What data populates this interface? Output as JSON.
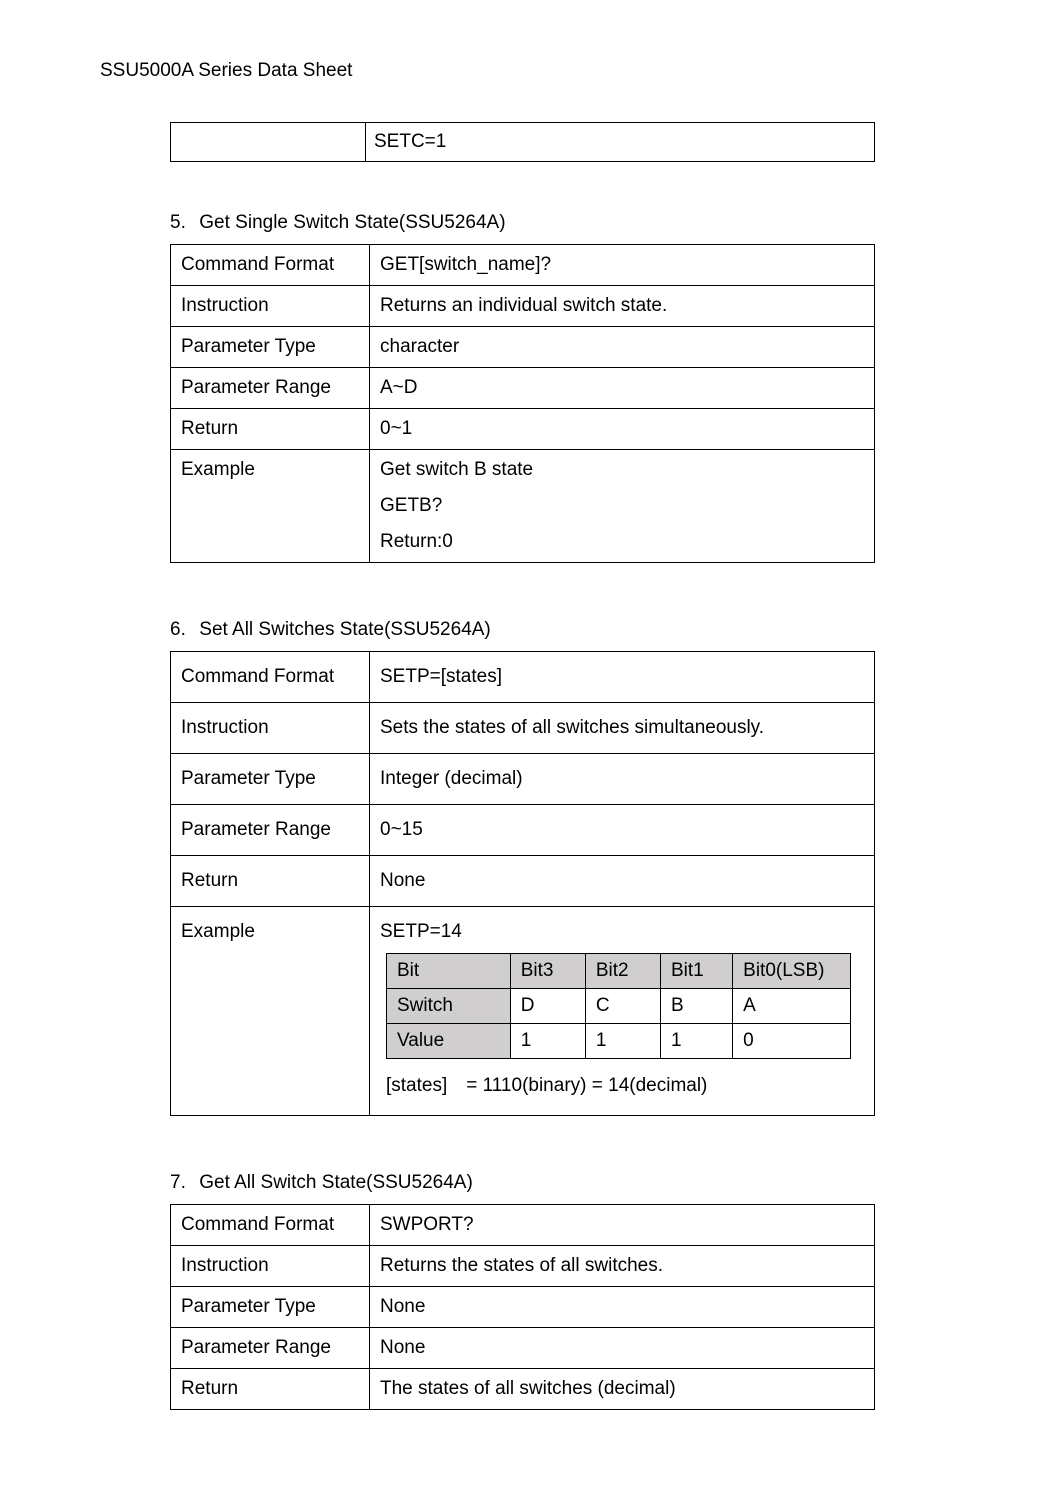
{
  "header": "SSU5000A Series Data Sheet",
  "top_fragment": {
    "col1": "",
    "col2": "SETC=1"
  },
  "sections": [
    {
      "number": "5.",
      "title": "Get Single Switch State(SSU5264A)",
      "table_class": "cmd-table5",
      "rows": [
        {
          "label": "Command Format",
          "value": "GET[switch_name]?"
        },
        {
          "label": "Instruction",
          "value": "Returns an individual switch state."
        },
        {
          "label": "Parameter Type",
          "value": "character"
        },
        {
          "label": "Parameter Range",
          "value": "A~D"
        },
        {
          "label": "Return",
          "value": "0~1"
        },
        {
          "label": "Example",
          "example_lines": [
            "Get switch B state",
            "GETB?",
            "Return:0"
          ]
        }
      ]
    },
    {
      "number": "6.",
      "title": "Set All Switches State(SSU5264A)",
      "table_class": "cmd-table6",
      "rows": [
        {
          "label": "Command Format",
          "value": "SETP=[states]"
        },
        {
          "label": "Instruction",
          "value": "Sets the states of all switches simultaneously."
        },
        {
          "label": "Parameter Type",
          "value": "Integer (decimal)"
        },
        {
          "label": "Parameter Range",
          "value": "0~15"
        },
        {
          "label": "Return",
          "value": "None"
        },
        {
          "label": "Example",
          "setp_line": "SETP=14",
          "bit_table": {
            "columns": [
              "Bit",
              "Bit3",
              "Bit2",
              "Bit1",
              "Bit0(LSB)"
            ],
            "rows": [
              [
                "Switch",
                "D",
                "C",
                "B",
                "A"
              ],
              [
                "Value",
                "1",
                "1",
                "1",
                "0"
              ]
            ]
          },
          "states_line": "[states] = 1110(binary) = 14(decimal)"
        }
      ]
    },
    {
      "number": "7.",
      "title": "Get All Switch State(SSU5264A)",
      "table_class": "cmd-table7",
      "rows": [
        {
          "label": "Command Format",
          "value": "SWPORT?"
        },
        {
          "label": "Instruction",
          "value": "Returns the states of all switches."
        },
        {
          "label": "Parameter Type",
          "value": "None"
        },
        {
          "label": "Parameter Range",
          "value": "None"
        },
        {
          "label": "Return",
          "value": "The states of all switches (decimal)"
        }
      ]
    }
  ]
}
